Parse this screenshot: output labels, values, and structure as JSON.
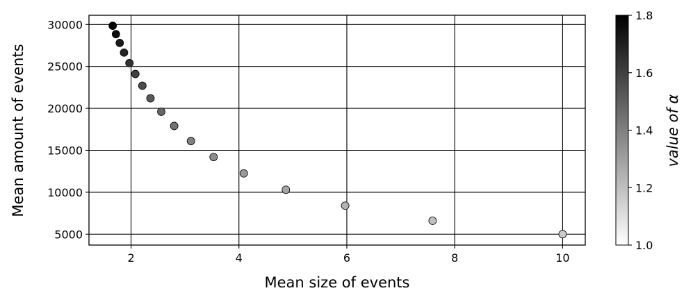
{
  "chart_data": {
    "type": "scatter",
    "title": "",
    "xlabel": "Mean size of events",
    "ylabel": "Mean amount of events",
    "xlim": [
      1.22,
      10.42
    ],
    "ylim": [
      3700,
      31100
    ],
    "x_ticks": [
      2,
      4,
      6,
      8,
      10
    ],
    "y_ticks": [
      5000,
      10000,
      15000,
      20000,
      25000,
      30000
    ],
    "grid": true,
    "points": [
      {
        "x": 1.66,
        "y": 29850,
        "alpha": 1.8
      },
      {
        "x": 1.72,
        "y": 28850,
        "alpha": 1.76
      },
      {
        "x": 1.79,
        "y": 27800,
        "alpha": 1.72
      },
      {
        "x": 1.87,
        "y": 26650,
        "alpha": 1.68
      },
      {
        "x": 1.97,
        "y": 25400,
        "alpha": 1.64
      },
      {
        "x": 2.08,
        "y": 24100,
        "alpha": 1.6
      },
      {
        "x": 2.21,
        "y": 22700,
        "alpha": 1.56
      },
      {
        "x": 2.36,
        "y": 21200,
        "alpha": 1.52
      },
      {
        "x": 2.56,
        "y": 19600,
        "alpha": 1.48
      },
      {
        "x": 2.8,
        "y": 17900,
        "alpha": 1.44
      },
      {
        "x": 3.11,
        "y": 16100,
        "alpha": 1.4
      },
      {
        "x": 3.53,
        "y": 14200,
        "alpha": 1.36
      },
      {
        "x": 4.09,
        "y": 12250,
        "alpha": 1.32
      },
      {
        "x": 4.87,
        "y": 10300,
        "alpha": 1.28
      },
      {
        "x": 5.97,
        "y": 8400,
        "alpha": 1.24
      },
      {
        "x": 7.59,
        "y": 6600,
        "alpha": 1.2
      },
      {
        "x": 10.0,
        "y": 5000,
        "alpha": 1.16
      }
    ],
    "colorbar": {
      "label": "value of α",
      "range": [
        1.0,
        1.8
      ],
      "ticks": [
        "1.0",
        "1.2",
        "1.4",
        "1.6",
        "1.8"
      ],
      "colormap": "white-to-black"
    }
  }
}
